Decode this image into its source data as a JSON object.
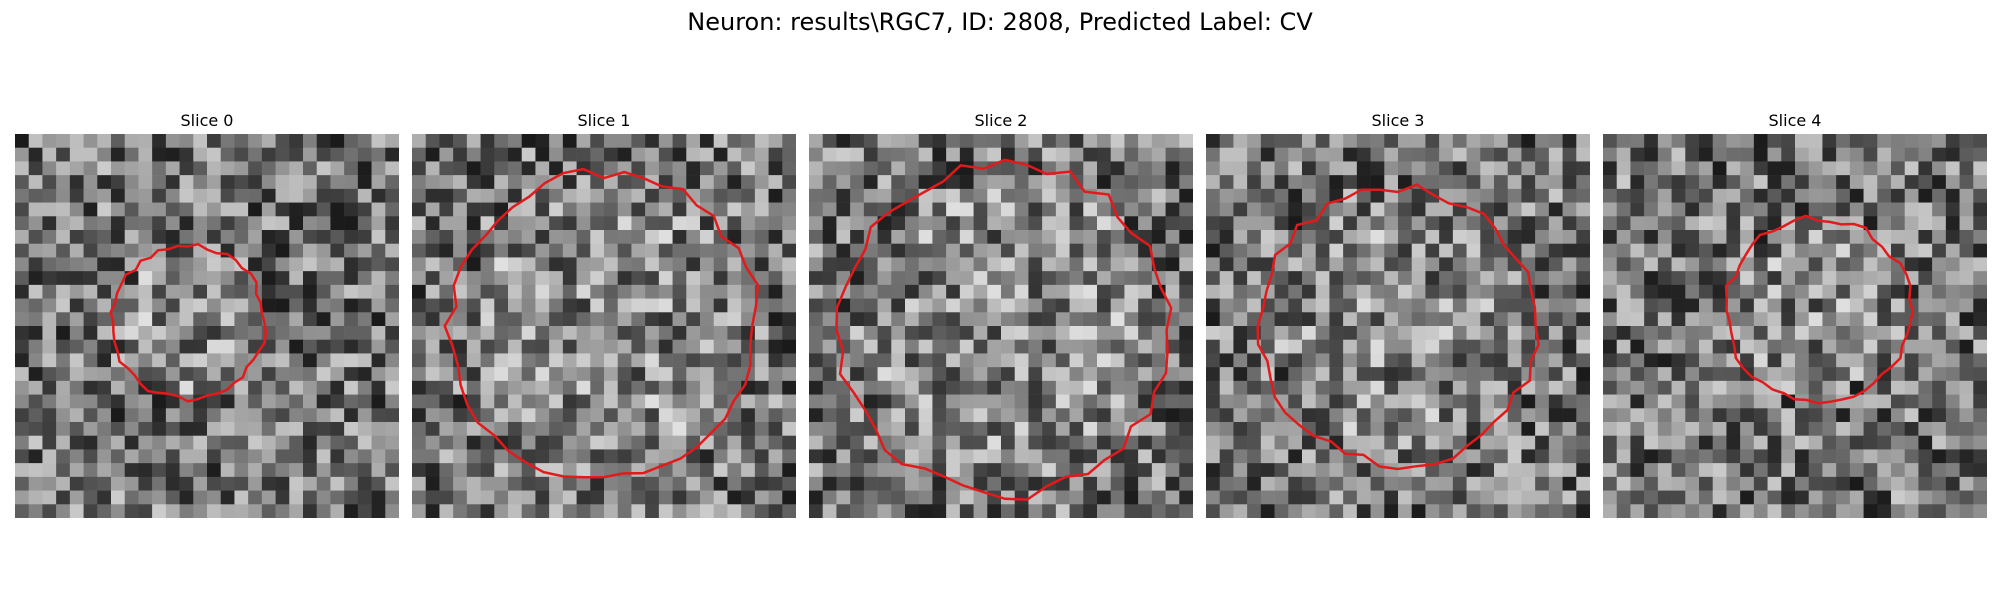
{
  "figure": {
    "title": "Neuron: results\\RGC7, ID: 2808, Predicted Label: CV"
  },
  "panels": [
    {
      "title": "Slice 0",
      "contour_color": "#e31a1c",
      "contour_center": [
        0.45,
        0.49
      ],
      "contour_radius": 0.2,
      "seed": 11
    },
    {
      "title": "Slice 1",
      "contour_color": "#e31a1c",
      "contour_center": [
        0.5,
        0.5
      ],
      "contour_radius": 0.4,
      "seed": 23
    },
    {
      "title": "Slice 2",
      "contour_color": "#e31a1c",
      "contour_center": [
        0.51,
        0.51
      ],
      "contour_radius": 0.43,
      "seed": 37
    },
    {
      "title": "Slice 3",
      "contour_color": "#e31a1c",
      "contour_center": [
        0.5,
        0.5
      ],
      "contour_radius": 0.36,
      "seed": 41
    },
    {
      "title": "Slice 4",
      "contour_color": "#e31a1c",
      "contour_center": [
        0.56,
        0.46
      ],
      "contour_radius": 0.24,
      "seed": 59
    }
  ],
  "image_style": "grayscale-noise-pixel-grid"
}
